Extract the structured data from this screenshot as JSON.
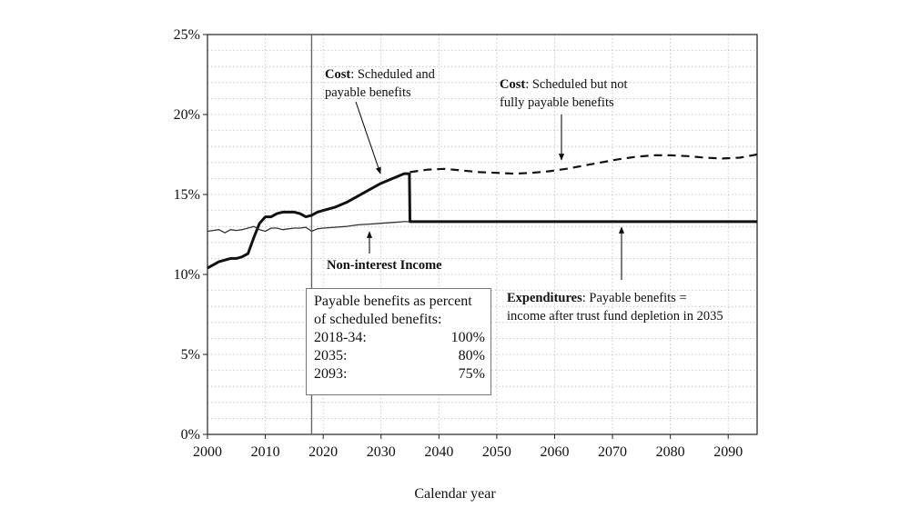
{
  "chart_data": {
    "type": "line",
    "xlabel": "Calendar year",
    "ylabel": "",
    "xlim": [
      2000,
      2095
    ],
    "ylim": [
      0,
      25
    ],
    "x_ticks": [
      "2000",
      "2010",
      "2020",
      "2030",
      "2040",
      "2050",
      "2060",
      "2070",
      "2080",
      "2090"
    ],
    "y_ticks": [
      "0%",
      "5%",
      "10%",
      "15%",
      "20%",
      "25%"
    ],
    "grid": true,
    "vertical_marker_year": 2018,
    "series": [
      {
        "style": "thick-solid",
        "x": [
          2000,
          2001,
          2002,
          2003,
          2004,
          2005,
          2006,
          2007,
          2008,
          2009,
          2010,
          2011,
          2012,
          2013,
          2014,
          2015,
          2016,
          2017,
          2018,
          2019,
          2020,
          2022,
          2024,
          2026,
          2028,
          2030,
          2032,
          2034,
          2034.9,
          2035,
          2040,
          2050,
          2060,
          2070,
          2080,
          2090,
          2095
        ],
        "values": [
          10.4,
          10.6,
          10.8,
          10.9,
          11.0,
          11.0,
          11.1,
          11.3,
          12.3,
          13.2,
          13.6,
          13.6,
          13.8,
          13.9,
          13.9,
          13.9,
          13.8,
          13.6,
          13.7,
          13.9,
          14.0,
          14.2,
          14.5,
          14.9,
          15.3,
          15.7,
          16.0,
          16.3,
          16.3,
          13.3,
          13.3,
          13.3,
          13.3,
          13.3,
          13.3,
          13.3,
          13.3
        ]
      },
      {
        "style": "dashed",
        "x": [
          2035,
          2038,
          2041,
          2044,
          2047,
          2050,
          2053,
          2056,
          2059,
          2062,
          2065,
          2068,
          2071,
          2074,
          2077,
          2080,
          2083,
          2086,
          2089,
          2092,
          2095
        ],
        "values": [
          16.4,
          16.55,
          16.6,
          16.5,
          16.4,
          16.35,
          16.3,
          16.35,
          16.45,
          16.6,
          16.8,
          17.0,
          17.2,
          17.35,
          17.45,
          17.45,
          17.4,
          17.3,
          17.25,
          17.3,
          17.5
        ]
      },
      {
        "style": "thin-solid",
        "x": [
          2000,
          2001,
          2002,
          2003,
          2004,
          2005,
          2006,
          2007,
          2008,
          2009,
          2010,
          2011,
          2012,
          2013,
          2014,
          2015,
          2016,
          2017,
          2018,
          2019,
          2020,
          2022,
          2024,
          2026,
          2028,
          2030,
          2032,
          2034,
          2035
        ],
        "values": [
          12.7,
          12.75,
          12.8,
          12.6,
          12.8,
          12.75,
          12.8,
          12.9,
          13.0,
          12.8,
          12.7,
          12.9,
          12.9,
          12.8,
          12.85,
          12.9,
          12.9,
          12.95,
          12.7,
          12.85,
          12.9,
          12.95,
          13.0,
          13.1,
          13.15,
          13.2,
          13.25,
          13.3,
          13.3
        ]
      }
    ],
    "annotations": {
      "cost_payable_bold": "Cost",
      "cost_payable_rest": ": Scheduled and",
      "cost_payable_line2": "payable benefits",
      "cost_unpayable_bold": "Cost",
      "cost_unpayable_rest": ": Scheduled but not",
      "cost_unpayable_line2": "fully payable benefits",
      "income": "Non-interest Income",
      "expend_bold": "Expenditures",
      "expend_rest": ": Payable benefits =",
      "expend_line2": "income after trust fund depletion in 2035"
    },
    "legend_box": {
      "title_line1": "Payable benefits as percent",
      "title_line2": "of scheduled benefits:",
      "rows": [
        {
          "period": "2018-34:",
          "pct": "100%"
        },
        {
          "period": "2035:",
          "pct": "80%"
        },
        {
          "period": "2093:",
          "pct": "75%"
        }
      ]
    }
  }
}
